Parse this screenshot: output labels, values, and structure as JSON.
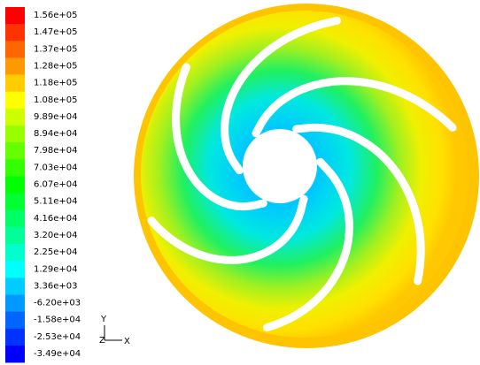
{
  "colorbar": {
    "labels": [
      "1.56e+05",
      "1.47e+05",
      "1.37e+05",
      "1.28e+05",
      "1.18e+05",
      "1.08e+05",
      "9.89e+04",
      "8.94e+04",
      "7.98e+04",
      "7.03e+04",
      "6.07e+04",
      "5.11e+04",
      "4.16e+04",
      "3.20e+04",
      "2.25e+04",
      "1.29e+04",
      "3.36e+03",
      "-6.20e+03",
      "-1.58e+04",
      "-2.53e+04",
      "-3.49e+04"
    ]
  },
  "axes": {
    "y": "Y",
    "z": "Z",
    "x": "X"
  }
}
